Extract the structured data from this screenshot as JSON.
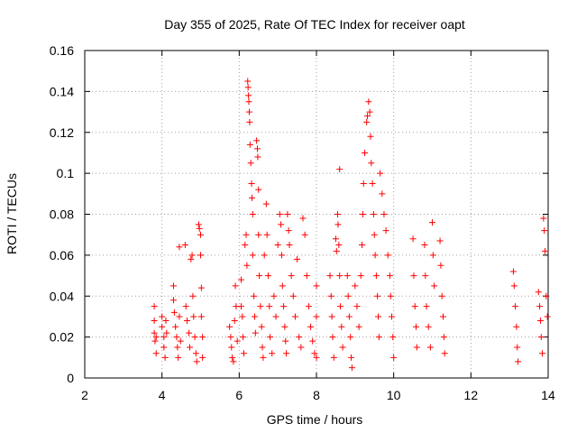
{
  "chart_data": {
    "type": "scatter",
    "title": "Day 355 of 2025, Rate Of TEC Index for receiver oapt",
    "xlabel": "GPS time / hours",
    "ylabel": "ROTI / TECUs",
    "xlim": [
      2,
      14
    ],
    "ylim": [
      0,
      0.16
    ],
    "x_ticks": [
      2,
      4,
      6,
      8,
      10,
      12,
      14
    ],
    "y_ticks": [
      0,
      0.02,
      0.04,
      0.06,
      0.08,
      0.1,
      0.12,
      0.14,
      0.16
    ],
    "x_tick_labels": [
      "2",
      "4",
      "6",
      "8",
      "10",
      "12",
      "14"
    ],
    "y_tick_labels": [
      "0",
      "0.02",
      "0.04",
      "0.06",
      "0.08",
      "0.1",
      "0.12",
      "0.14",
      "0.16"
    ],
    "grid": true,
    "marker": "+",
    "color": "#ff0000",
    "points": [
      [
        3.8,
        0.035
      ],
      [
        3.8,
        0.028
      ],
      [
        3.8,
        0.022
      ],
      [
        3.82,
        0.018
      ],
      [
        3.85,
        0.012
      ],
      [
        3.85,
        0.02
      ],
      [
        4.0,
        0.03
      ],
      [
        4.0,
        0.025
      ],
      [
        4.05,
        0.02
      ],
      [
        4.05,
        0.015
      ],
      [
        4.08,
        0.01
      ],
      [
        4.1,
        0.028
      ],
      [
        4.12,
        0.022
      ],
      [
        4.3,
        0.045
      ],
      [
        4.3,
        0.038
      ],
      [
        4.32,
        0.032
      ],
      [
        4.35,
        0.025
      ],
      [
        4.38,
        0.02
      ],
      [
        4.4,
        0.015
      ],
      [
        4.42,
        0.01
      ],
      [
        4.45,
        0.064
      ],
      [
        4.45,
        0.03
      ],
      [
        4.48,
        0.018
      ],
      [
        4.6,
        0.065
      ],
      [
        4.62,
        0.035
      ],
      [
        4.65,
        0.028
      ],
      [
        4.7,
        0.022
      ],
      [
        4.72,
        0.015
      ],
      [
        4.75,
        0.058
      ],
      [
        4.78,
        0.06
      ],
      [
        4.8,
        0.04
      ],
      [
        4.82,
        0.03
      ],
      [
        4.85,
        0.02
      ],
      [
        4.88,
        0.012
      ],
      [
        4.9,
        0.008
      ],
      [
        4.95,
        0.075
      ],
      [
        4.97,
        0.073
      ],
      [
        5.0,
        0.07
      ],
      [
        5.0,
        0.06
      ],
      [
        5.02,
        0.044
      ],
      [
        5.02,
        0.03
      ],
      [
        5.05,
        0.02
      ],
      [
        5.05,
        0.01
      ],
      [
        5.75,
        0.025
      ],
      [
        5.78,
        0.02
      ],
      [
        5.8,
        0.015
      ],
      [
        5.82,
        0.01
      ],
      [
        5.85,
        0.008
      ],
      [
        5.88,
        0.028
      ],
      [
        5.9,
        0.045
      ],
      [
        5.92,
        0.035
      ],
      [
        5.95,
        0.018
      ],
      [
        6.05,
        0.048
      ],
      [
        6.05,
        0.035
      ],
      [
        6.08,
        0.03
      ],
      [
        6.1,
        0.02
      ],
      [
        6.12,
        0.012
      ],
      [
        6.15,
        0.065
      ],
      [
        6.18,
        0.07
      ],
      [
        6.2,
        0.055
      ],
      [
        6.22,
        0.145
      ],
      [
        6.23,
        0.142
      ],
      [
        6.24,
        0.138
      ],
      [
        6.25,
        0.135
      ],
      [
        6.26,
        0.13
      ],
      [
        6.27,
        0.125
      ],
      [
        6.28,
        0.114
      ],
      [
        6.3,
        0.105
      ],
      [
        6.32,
        0.095
      ],
      [
        6.33,
        0.088
      ],
      [
        6.35,
        0.08
      ],
      [
        6.35,
        0.06
      ],
      [
        6.38,
        0.04
      ],
      [
        6.4,
        0.03
      ],
      [
        6.42,
        0.022
      ],
      [
        6.45,
        0.116
      ],
      [
        6.47,
        0.112
      ],
      [
        6.48,
        0.108
      ],
      [
        6.5,
        0.092
      ],
      [
        6.5,
        0.07
      ],
      [
        6.52,
        0.05
      ],
      [
        6.55,
        0.035
      ],
      [
        6.58,
        0.025
      ],
      [
        6.6,
        0.015
      ],
      [
        6.62,
        0.01
      ],
      [
        6.65,
        0.06
      ],
      [
        6.7,
        0.085
      ],
      [
        6.72,
        0.07
      ],
      [
        6.75,
        0.05
      ],
      [
        6.78,
        0.035
      ],
      [
        6.8,
        0.02
      ],
      [
        6.85,
        0.012
      ],
      [
        6.9,
        0.04
      ],
      [
        6.95,
        0.03
      ],
      [
        7.0,
        0.065
      ],
      [
        7.05,
        0.08
      ],
      [
        7.08,
        0.075
      ],
      [
        7.1,
        0.06
      ],
      [
        7.12,
        0.045
      ],
      [
        7.15,
        0.035
      ],
      [
        7.18,
        0.025
      ],
      [
        7.2,
        0.018
      ],
      [
        7.22,
        0.012
      ],
      [
        7.25,
        0.08
      ],
      [
        7.28,
        0.072
      ],
      [
        7.3,
        0.065
      ],
      [
        7.35,
        0.05
      ],
      [
        7.4,
        0.04
      ],
      [
        7.45,
        0.03
      ],
      [
        7.5,
        0.058
      ],
      [
        7.55,
        0.02
      ],
      [
        7.6,
        0.015
      ],
      [
        7.65,
        0.078
      ],
      [
        7.7,
        0.07
      ],
      [
        7.75,
        0.05
      ],
      [
        7.8,
        0.035
      ],
      [
        7.85,
        0.025
      ],
      [
        7.9,
        0.018
      ],
      [
        7.95,
        0.012
      ],
      [
        8.0,
        0.045
      ],
      [
        8.0,
        0.03
      ],
      [
        8.0,
        0.01
      ],
      [
        8.35,
        0.05
      ],
      [
        8.38,
        0.04
      ],
      [
        8.4,
        0.03
      ],
      [
        8.42,
        0.02
      ],
      [
        8.45,
        0.01
      ],
      [
        8.5,
        0.068
      ],
      [
        8.52,
        0.062
      ],
      [
        8.55,
        0.08
      ],
      [
        8.56,
        0.075
      ],
      [
        8.58,
        0.065
      ],
      [
        8.6,
        0.102
      ],
      [
        8.6,
        0.05
      ],
      [
        8.62,
        0.035
      ],
      [
        8.65,
        0.025
      ],
      [
        8.68,
        0.015
      ],
      [
        8.8,
        0.05
      ],
      [
        8.82,
        0.04
      ],
      [
        8.85,
        0.03
      ],
      [
        8.88,
        0.02
      ],
      [
        8.9,
        0.01
      ],
      [
        8.92,
        0.005
      ],
      [
        9.0,
        0.045
      ],
      [
        9.05,
        0.035
      ],
      [
        9.1,
        0.025
      ],
      [
        9.15,
        0.05
      ],
      [
        9.18,
        0.065
      ],
      [
        9.2,
        0.08
      ],
      [
        9.22,
        0.095
      ],
      [
        9.25,
        0.11
      ],
      [
        9.3,
        0.125
      ],
      [
        9.32,
        0.128
      ],
      [
        9.35,
        0.135
      ],
      [
        9.38,
        0.13
      ],
      [
        9.4,
        0.118
      ],
      [
        9.42,
        0.105
      ],
      [
        9.45,
        0.095
      ],
      [
        9.48,
        0.08
      ],
      [
        9.5,
        0.07
      ],
      [
        9.52,
        0.06
      ],
      [
        9.55,
        0.05
      ],
      [
        9.58,
        0.04
      ],
      [
        9.6,
        0.03
      ],
      [
        9.62,
        0.02
      ],
      [
        9.65,
        0.1
      ],
      [
        9.7,
        0.09
      ],
      [
        9.75,
        0.08
      ],
      [
        9.8,
        0.072
      ],
      [
        9.85,
        0.06
      ],
      [
        9.9,
        0.05
      ],
      [
        9.92,
        0.04
      ],
      [
        9.95,
        0.03
      ],
      [
        9.98,
        0.02
      ],
      [
        10.0,
        0.01
      ],
      [
        10.5,
        0.068
      ],
      [
        10.52,
        0.05
      ],
      [
        10.55,
        0.035
      ],
      [
        10.58,
        0.025
      ],
      [
        10.6,
        0.015
      ],
      [
        10.8,
        0.065
      ],
      [
        10.82,
        0.05
      ],
      [
        10.85,
        0.035
      ],
      [
        10.9,
        0.025
      ],
      [
        10.95,
        0.015
      ],
      [
        11.0,
        0.076
      ],
      [
        11.02,
        0.06
      ],
      [
        11.05,
        0.045
      ],
      [
        11.2,
        0.067
      ],
      [
        11.22,
        0.055
      ],
      [
        11.25,
        0.04
      ],
      [
        11.28,
        0.03
      ],
      [
        11.3,
        0.02
      ],
      [
        11.32,
        0.012
      ],
      [
        13.1,
        0.052
      ],
      [
        13.12,
        0.045
      ],
      [
        13.15,
        0.035
      ],
      [
        13.18,
        0.025
      ],
      [
        13.2,
        0.015
      ],
      [
        13.22,
        0.008
      ],
      [
        13.75,
        0.042
      ],
      [
        13.78,
        0.035
      ],
      [
        13.8,
        0.028
      ],
      [
        13.82,
        0.02
      ],
      [
        13.85,
        0.012
      ],
      [
        13.88,
        0.078
      ],
      [
        13.9,
        0.072
      ],
      [
        13.92,
        0.062
      ],
      [
        13.95,
        0.04
      ],
      [
        13.98,
        0.03
      ]
    ]
  }
}
